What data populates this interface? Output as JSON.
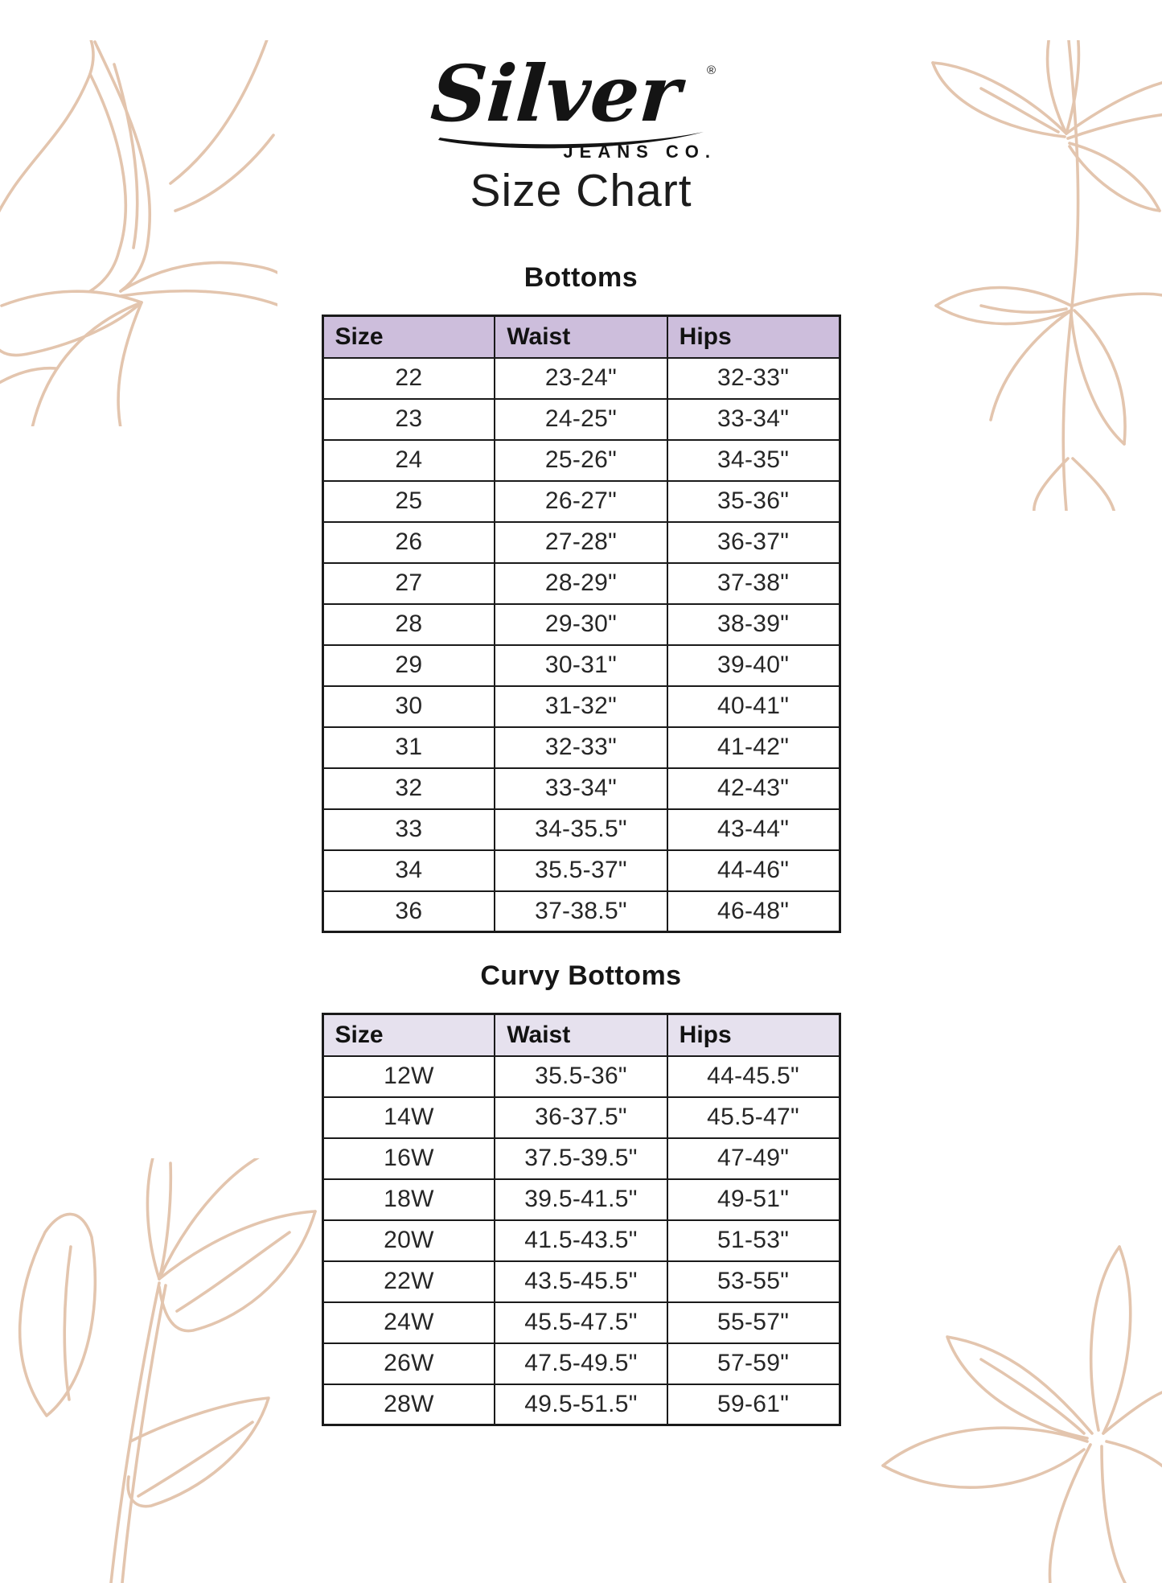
{
  "brand": {
    "name": "Silver",
    "registered_mark": "®",
    "subtext": "JEANS CO."
  },
  "page_title": "Size Chart",
  "sections": [
    {
      "heading": "Bottoms",
      "columns": [
        "Size",
        "Waist",
        "Hips"
      ],
      "rows": [
        [
          "22",
          "23-24\"",
          "32-33\""
        ],
        [
          "23",
          "24-25\"",
          "33-34\""
        ],
        [
          "24",
          "25-26\"",
          "34-35\""
        ],
        [
          "25",
          "26-27\"",
          "35-36\""
        ],
        [
          "26",
          "27-28\"",
          "36-37\""
        ],
        [
          "27",
          "28-29\"",
          "37-38\""
        ],
        [
          "28",
          "29-30\"",
          "38-39\""
        ],
        [
          "29",
          "30-31\"",
          "39-40\""
        ],
        [
          "30",
          "31-32\"",
          "40-41\""
        ],
        [
          "31",
          "32-33\"",
          "41-42\""
        ],
        [
          "32",
          "33-34\"",
          "42-43\""
        ],
        [
          "33",
          "34-35.5\"",
          "43-44\""
        ],
        [
          "34",
          "35.5-37\"",
          "44-46\""
        ],
        [
          "36",
          "37-38.5\"",
          "46-48\""
        ]
      ]
    },
    {
      "heading": "Curvy Bottoms",
      "columns": [
        "Size",
        "Waist",
        "Hips"
      ],
      "rows": [
        [
          "12W",
          "35.5-36\"",
          "44-45.5\""
        ],
        [
          "14W",
          "36-37.5\"",
          "45.5-47\""
        ],
        [
          "16W",
          "37.5-39.5\"",
          "47-49\""
        ],
        [
          "18W",
          "39.5-41.5\"",
          "49-51\""
        ],
        [
          "20W",
          "41.5-43.5\"",
          "51-53\""
        ],
        [
          "22W",
          "43.5-45.5\"",
          "53-55\""
        ],
        [
          "24W",
          "45.5-47.5\"",
          "55-57\""
        ],
        [
          "26W",
          "47.5-49.5\"",
          "57-59\""
        ],
        [
          "28W",
          "49.5-51.5\"",
          "59-61\""
        ]
      ]
    }
  ],
  "colors": {
    "table1_header_bg": "#cdbedc",
    "table2_header_bg": "#e6e1ee",
    "table_border": "#1a1a1a",
    "floral_line": "#e3c5ae",
    "text": "#1c1c1c"
  }
}
